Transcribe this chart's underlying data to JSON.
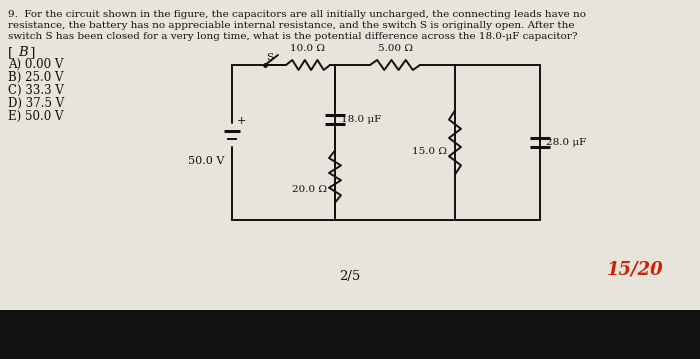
{
  "bg_color": "#ccc8c0",
  "paper_color": "#e8e4dc",
  "title_line1": "9.  For the circuit shown in the figure, the capacitors are all initially uncharged, the connecting leads have no",
  "title_line2": "resistance, the battery has no appreciable internal resistance, and the switch S is originally open. After the",
  "title_line3": "switch S has been closed for a very long time, what is the potential difference across the 18.0-μF capacitor?",
  "bracket": "[ B ]",
  "choices": [
    "A) 0.00 V",
    "B) 25.0 V",
    "C) 33.3 V",
    "D) 37.5 V",
    "E) 50.0 V"
  ],
  "page_num": "2/5",
  "score": "15/20",
  "battery_voltage": "50.0 V",
  "r1_label": "10.0 Ω",
  "r2_label": "5.00 Ω",
  "r3_label": "20.0 Ω",
  "r4_label": "15.0 Ω",
  "c1_label": "18.0 μF",
  "c2_label": "28.0 μF",
  "switch_label": "S",
  "text_color": "#111111",
  "red_color": "#cc2200",
  "line_color": "#111111",
  "font_size_body": 7.5,
  "font_size_choices": 8.5,
  "font_size_bracket": 9.5,
  "font_size_circuit": 7.5
}
